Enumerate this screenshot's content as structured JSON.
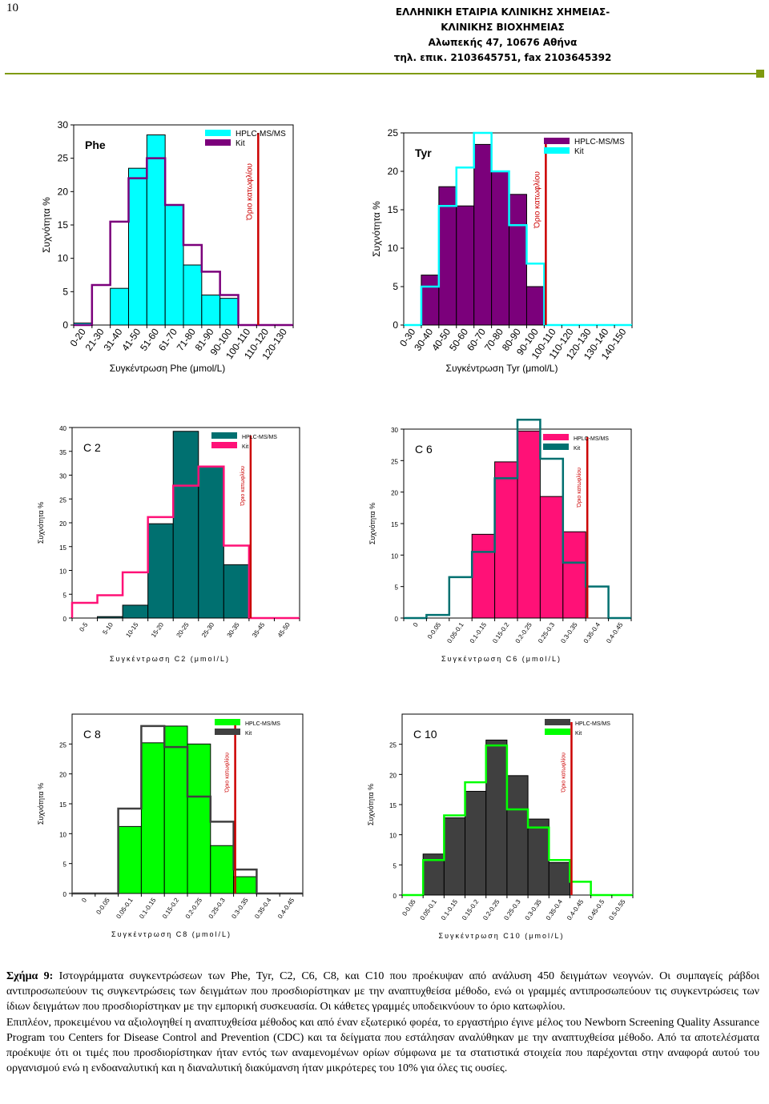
{
  "page_number": "10",
  "header": {
    "line1": "ΕΛΛΗΝΙΚΗ ΕΤΑΙΡΙΑ ΚΛΙΝΙΚΗΣ ΧΗΜΕΙΑΣ-",
    "line2": "ΚΛΙΝΙΚΗΣ ΒΙΟΧΗΜΕΙΑΣ",
    "line3": "Αλωπεκής 47, 10676 Αθήνα",
    "line4": "τηλ. επικ. 2103645751, fax 2103645392"
  },
  "colors": {
    "cyan": "#00ffff",
    "purple": "#7b007b",
    "teal": "#007070",
    "pink": "#ff1177",
    "green": "#00ff00",
    "darkgray": "#404040",
    "cutoff": "#cc0000",
    "rule_green": "#7f9a0f"
  },
  "chart_data": [
    {
      "type": "bar",
      "name": "Phe",
      "title": "Phe",
      "xlabel": "Συγκέντρωση Phe (μmol/L)",
      "ylabel": "Συχνότητα %",
      "categories": [
        "0-20",
        "21-30",
        "31-40",
        "41-50",
        "51-60",
        "61-70",
        "71-80",
        "81-90",
        "90-100",
        "100-110",
        "110-120",
        "120-130"
      ],
      "ylim": [
        0,
        30
      ],
      "yticks": [
        0,
        5,
        10,
        15,
        20,
        25,
        30
      ],
      "cutoff_after": 10,
      "cutoff_label": "Όριο κατωφλίου",
      "series": [
        {
          "name": "HPLC-MS/MS",
          "style": "bar",
          "values": [
            0.3,
            0,
            5.5,
            23.5,
            28.5,
            18,
            9,
            4.5,
            4,
            0,
            0,
            0
          ]
        },
        {
          "name": "Kit",
          "style": "step",
          "values": [
            0,
            6,
            15.5,
            22,
            25,
            18,
            12,
            8,
            4.5,
            0,
            0,
            0
          ]
        }
      ]
    },
    {
      "type": "bar",
      "name": "Tyr",
      "title": "Tyr",
      "xlabel": "Συγκέντρωση Tyr (μmol/L)",
      "ylabel": "Συχνότητα %",
      "categories": [
        "0-30",
        "30-40",
        "40-50",
        "50-60",
        "60-70",
        "70-80",
        "80-90",
        "90-100",
        "100-110",
        "110-120",
        "120-130",
        "130-140",
        "140-150"
      ],
      "ylim": [
        0,
        25
      ],
      "yticks": [
        0,
        5,
        10,
        15,
        20,
        25
      ],
      "cutoff_after": 8,
      "cutoff_label": "Όριο κατωφλίου",
      "series": [
        {
          "name": "HPLC-MS/MS",
          "style": "bar",
          "values": [
            0,
            6.5,
            18,
            15.5,
            23.5,
            20,
            17,
            5,
            0,
            0,
            0,
            0,
            0
          ]
        },
        {
          "name": "Kit",
          "style": "step",
          "values": [
            0,
            5,
            15.5,
            20.5,
            25,
            20,
            13,
            8,
            0,
            0,
            0,
            0,
            0
          ]
        }
      ]
    },
    {
      "type": "bar",
      "name": "C2",
      "title": "C 2",
      "xlabel": "Συγκέντρωση C2 (μmol/L)",
      "ylabel": "Συχνότητα %",
      "categories": [
        "0-5",
        "5-10",
        "10-15",
        "15-20",
        "20-25",
        "25-30",
        "30-35",
        "35-45",
        "45-50"
      ],
      "ylim": [
        0,
        40
      ],
      "yticks": [
        0,
        5,
        10,
        15,
        20,
        25,
        30,
        35,
        40
      ],
      "cutoff_after": 7,
      "cutoff_label": "Όριο κατωφλίου",
      "series": [
        {
          "name": "HPLC-MS/MS",
          "style": "bar",
          "values": [
            0,
            0.3,
            2.7,
            19.8,
            39.2,
            31.8,
            11.2,
            0,
            0
          ]
        },
        {
          "name": "Kit",
          "style": "step",
          "values": [
            3.2,
            4.8,
            9.6,
            21.2,
            27.8,
            31.8,
            15.2,
            0,
            0
          ]
        }
      ]
    },
    {
      "type": "bar",
      "name": "C6",
      "title": "C 6",
      "xlabel": "Συγκέντρωση C6 (μmol/L)",
      "ylabel": "Συχνότητα %",
      "categories": [
        "0",
        "0-0.05",
        "0.05-0.1",
        "0.1-0.15",
        "0.15-0.2",
        "0.2-0.25",
        "0.25-0.3",
        "0.3-0.35",
        "0.35-0.4",
        "0.4-0.45"
      ],
      "ylim": [
        0,
        30
      ],
      "yticks": [
        0,
        5,
        10,
        15,
        20,
        25,
        30
      ],
      "cutoff_after": 8,
      "cutoff_label": "Όριο κατωφλίου",
      "series": [
        {
          "name": "HPLC-MS/MS",
          "style": "bar",
          "values": [
            0,
            0,
            0,
            13.3,
            24.8,
            29.7,
            19.3,
            13.7,
            0,
            0
          ]
        },
        {
          "name": "Kit",
          "style": "step",
          "values": [
            0,
            0.5,
            6.5,
            10.5,
            22.2,
            31.5,
            25.3,
            8.8,
            5,
            0
          ]
        }
      ]
    },
    {
      "type": "bar",
      "name": "C8",
      "title": "C 8",
      "xlabel": "Συγκέντρωση C8 (μmol/L)",
      "ylabel": "Συχνότητα %",
      "categories": [
        "0",
        "0-0.05",
        "0.05-0.1",
        "0.1-0.15",
        "0.15-0.2",
        "0.2-0.25",
        "0.25-0.3",
        "0.3-0.35",
        "0.35-0.4",
        "0.4-0.45"
      ],
      "ylim": [
        0,
        30
      ],
      "yticks": [
        0,
        5,
        10,
        15,
        20,
        25
      ],
      "cutoff_after": 7,
      "cutoff_label": "Όριο κατωφλίου",
      "series": [
        {
          "name": "HPLC-MS/MS",
          "style": "bar",
          "values": [
            0,
            0,
            11.2,
            25.2,
            28,
            25,
            8,
            2.8,
            0,
            0
          ]
        },
        {
          "name": "Kit",
          "style": "step",
          "values": [
            0,
            0,
            14.2,
            28,
            24.5,
            16.2,
            12,
            4,
            0,
            0
          ]
        }
      ]
    },
    {
      "type": "bar",
      "name": "C10",
      "title": "C 10",
      "xlabel": "Συγκέντρωση C10 (μmol/L)",
      "ylabel": "Συχνότητα %",
      "categories": [
        "0-0.05",
        "0.05-0.1",
        "0.1-0.15",
        "0.15-0.2",
        "0.2-0.25",
        "0.25-0.3",
        "0.3-0.35",
        "0.35-0.4",
        "0.4-0.45",
        "0.45-0.5",
        "0.5-0.55"
      ],
      "ylim": [
        0,
        30
      ],
      "yticks": [
        0,
        5,
        10,
        15,
        20,
        25
      ],
      "cutoff_after": 8,
      "cutoff_label": "Όριο κατωφλίου",
      "series": [
        {
          "name": "HPLC-MS/MS",
          "style": "bar",
          "values": [
            0,
            6.8,
            12.8,
            17.2,
            25.7,
            19.8,
            12.6,
            5.4,
            0,
            0,
            0
          ]
        },
        {
          "name": "Kit",
          "style": "step",
          "values": [
            0,
            5.8,
            13.2,
            18.7,
            24.8,
            14.2,
            11.2,
            5.8,
            2.2,
            0,
            0
          ]
        }
      ]
    }
  ],
  "caption": {
    "label": "Σχήμα 9:",
    "text1": " Ιστογράμματα συγκεντρώσεων των Phe, Tyr, C2, C6, C8, και C10 που προέκυψαν από ανάλυση 450 δειγμάτων νεογνών. Οι συμπαγείς ράβδοι αντιπροσωπεύουν τις συγκεντρώσεις των δειγμάτων που προσδιορίστηκαν με την αναπτυχθείσα μέθοδο, ενώ οι γραμμές αντιπροσωπεύουν τις συγκεντρώσεις των ίδιων δειγμάτων που προσδιορίστηκαν με την εμπορική συσκευασία. Οι κάθετες γραμμές υποδεικνύουν το όριο κατωφλίου.",
    "text2": "Επιπλέον, προκειμένου να αξιολογηθεί η αναπτυχθείσα μέθοδος και από έναν εξωτερικό φορέα, το εργαστήριο έγινε μέλος του Newborn Screening Quality Assurance Program του Centers for Disease Control and Prevention (CDC) και τα δείγματα που εστάλησαν αναλύθηκαν με την αναπτυχθείσα μέθοδο. Από τα αποτελέσματα προέκυψε ότι οι τιμές που προσδιορίστηκαν ήταν εντός των αναμενομένων ορίων σύμφωνα με τα στατιστικά στοιχεία που παρέχονται στην αναφορά αυτού του οργανισμού ενώ η ενδοαναλυτική και η διαναλυτική διακύμανση ήταν μικρότερες του 10% για όλες τις ουσίες."
  }
}
